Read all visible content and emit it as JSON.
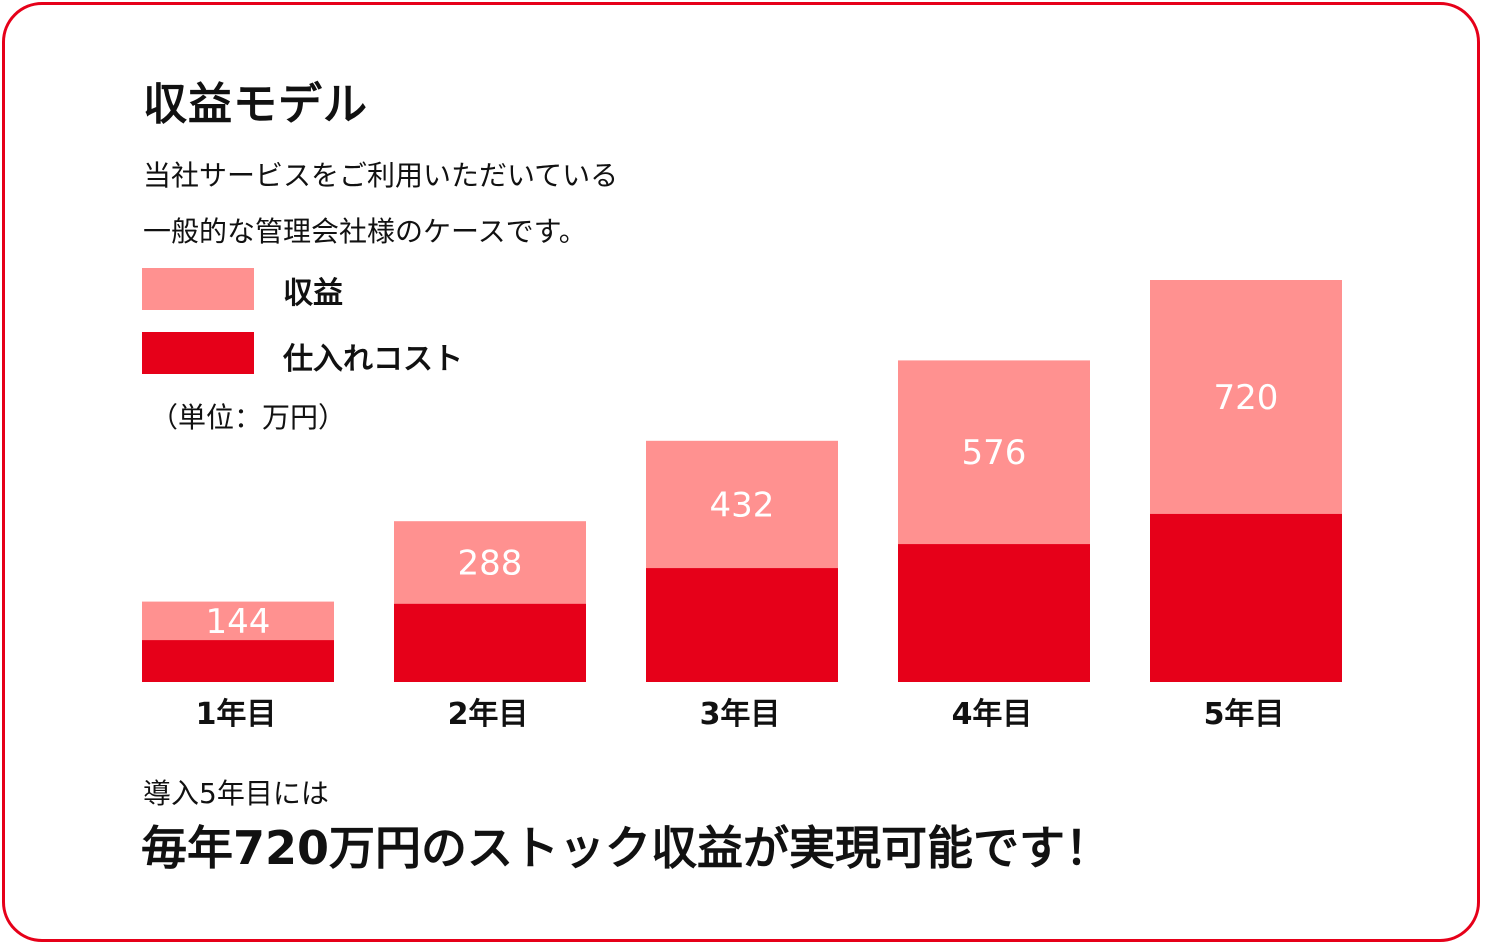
{
  "title": "収益モデル",
  "description": [
    "当社サービスをご利用いただいている",
    "一般的な管理会社様のケースです。"
  ],
  "unit_label": "（単位：万円）",
  "colors": {
    "revenue": "#ff9190",
    "cost": "#e60019",
    "border": "#e60019"
  },
  "chart_data": {
    "type": "bar",
    "stacked": "overlay",
    "categories": [
      "1年目",
      "2年目",
      "3年目",
      "4年目",
      "5年目"
    ],
    "series": [
      {
        "name": "収益",
        "values": [
          144,
          288,
          432,
          576,
          720
        ],
        "color": "#ff9190"
      },
      {
        "name": "仕入れコスト",
        "values": [
          75,
          140,
          204,
          247,
          301
        ],
        "color": "#e60019"
      }
    ],
    "data_labels": [
      "144",
      "288",
      "432",
      "576",
      "720"
    ],
    "ylim": [
      0,
      720
    ],
    "grid": false,
    "legend": "top-left"
  },
  "footer": {
    "note": "導入5年目には",
    "headline": "毎年720万円のストック収益が実現可能です！"
  }
}
